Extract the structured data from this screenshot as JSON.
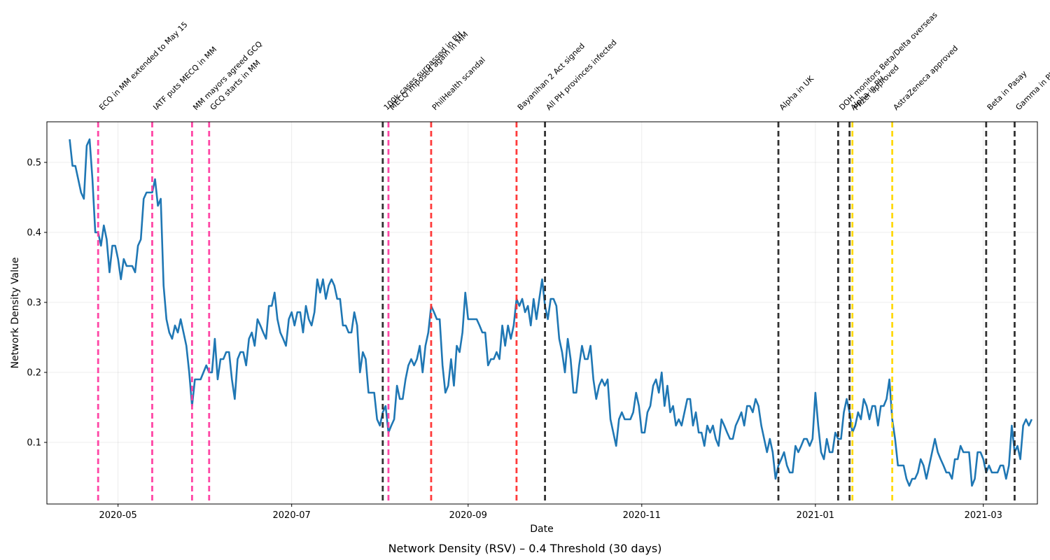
{
  "chart_data": {
    "type": "line",
    "title": "Network Density (RSV) – 0.4 Threshold (30 days)",
    "xlabel": "Date",
    "ylabel": "Network Density Value",
    "grid": true,
    "xlim": [
      "2020-04-06",
      "2021-03-20"
    ],
    "ylim": [
      0.012,
      0.558
    ],
    "x_ticks": [
      "2020-05-01",
      "2020-07-01",
      "2020-09-01",
      "2020-11-01",
      "2021-01-01",
      "2021-03-01"
    ],
    "x_tick_labels": [
      "2020-05",
      "2020-07",
      "2020-09",
      "2020-11",
      "2021-01",
      "2021-03"
    ],
    "y_ticks": [
      0.1,
      0.2,
      0.3,
      0.4,
      0.5
    ],
    "y_tick_labels": [
      "0.1",
      "0.2",
      "0.3",
      "0.4",
      "0.5"
    ],
    "series": [
      {
        "color": "#1f77b4",
        "start_date": "2020-04-14",
        "interval_days": 1,
        "values": [
          0.533,
          0.495,
          0.495,
          0.476,
          0.457,
          0.448,
          0.524,
          0.533,
          0.476,
          0.4,
          0.4,
          0.381,
          0.41,
          0.39,
          0.343,
          0.381,
          0.381,
          0.362,
          0.333,
          0.362,
          0.352,
          0.352,
          0.352,
          0.343,
          0.381,
          0.39,
          0.448,
          0.457,
          0.457,
          0.457,
          0.476,
          0.438,
          0.448,
          0.324,
          0.276,
          0.257,
          0.248,
          0.267,
          0.257,
          0.276,
          0.257,
          0.238,
          0.2,
          0.152,
          0.19,
          0.19,
          0.19,
          0.2,
          0.21,
          0.2,
          0.2,
          0.248,
          0.19,
          0.219,
          0.219,
          0.229,
          0.229,
          0.19,
          0.162,
          0.219,
          0.229,
          0.229,
          0.21,
          0.248,
          0.257,
          0.238,
          0.276,
          0.267,
          0.257,
          0.248,
          0.295,
          0.295,
          0.314,
          0.276,
          0.257,
          0.248,
          0.238,
          0.276,
          0.286,
          0.267,
          0.286,
          0.286,
          0.257,
          0.295,
          0.276,
          0.267,
          0.286,
          0.333,
          0.314,
          0.333,
          0.305,
          0.324,
          0.333,
          0.324,
          0.305,
          0.305,
          0.267,
          0.267,
          0.257,
          0.257,
          0.286,
          0.267,
          0.2,
          0.229,
          0.219,
          0.171,
          0.171,
          0.171,
          0.133,
          0.124,
          0.143,
          0.152,
          0.114,
          0.124,
          0.133,
          0.181,
          0.162,
          0.162,
          0.19,
          0.21,
          0.219,
          0.21,
          0.219,
          0.238,
          0.2,
          0.238,
          0.257,
          0.295,
          0.286,
          0.276,
          0.276,
          0.21,
          0.171,
          0.181,
          0.219,
          0.181,
          0.238,
          0.229,
          0.257,
          0.314,
          0.276,
          0.276,
          0.276,
          0.276,
          0.267,
          0.257,
          0.257,
          0.21,
          0.219,
          0.219,
          0.229,
          0.219,
          0.267,
          0.238,
          0.267,
          0.248,
          0.267,
          0.305,
          0.295,
          0.305,
          0.286,
          0.295,
          0.267,
          0.305,
          0.276,
          0.305,
          0.333,
          0.295,
          0.276,
          0.305,
          0.305,
          0.295,
          0.248,
          0.229,
          0.2,
          0.248,
          0.219,
          0.171,
          0.171,
          0.21,
          0.238,
          0.219,
          0.219,
          0.238,
          0.19,
          0.162,
          0.181,
          0.19,
          0.181,
          0.19,
          0.133,
          0.114,
          0.095,
          0.133,
          0.143,
          0.133,
          0.133,
          0.133,
          0.143,
          0.171,
          0.152,
          0.114,
          0.114,
          0.143,
          0.152,
          0.181,
          0.19,
          0.171,
          0.2,
          0.152,
          0.181,
          0.143,
          0.152,
          0.124,
          0.133,
          0.124,
          0.143,
          0.162,
          0.162,
          0.124,
          0.143,
          0.114,
          0.114,
          0.095,
          0.124,
          0.114,
          0.124,
          0.105,
          0.095,
          0.133,
          0.124,
          0.114,
          0.105,
          0.105,
          0.124,
          0.133,
          0.143,
          0.124,
          0.152,
          0.152,
          0.143,
          0.162,
          0.152,
          0.124,
          0.105,
          0.086,
          0.105,
          0.086,
          0.048,
          0.067,
          0.076,
          0.086,
          0.067,
          0.057,
          0.057,
          0.095,
          0.086,
          0.095,
          0.105,
          0.105,
          0.095,
          0.105,
          0.171,
          0.124,
          0.086,
          0.076,
          0.105,
          0.086,
          0.086,
          0.114,
          0.105,
          0.105,
          0.143,
          0.162,
          0.143,
          0.114,
          0.124,
          0.143,
          0.133,
          0.162,
          0.152,
          0.133,
          0.152,
          0.152,
          0.124,
          0.152,
          0.152,
          0.162,
          0.19,
          0.133,
          0.105,
          0.067,
          0.067,
          0.067,
          0.048,
          0.038,
          0.048,
          0.048,
          0.057,
          0.076,
          0.067,
          0.048,
          0.067,
          0.086,
          0.105,
          0.086,
          0.076,
          0.067,
          0.057,
          0.057,
          0.048,
          0.076,
          0.076,
          0.095,
          0.086,
          0.086,
          0.086,
          0.038,
          0.048,
          0.086,
          0.086,
          0.076,
          0.057,
          0.067,
          0.057,
          0.057,
          0.057,
          0.067,
          0.067,
          0.048,
          0.067,
          0.124,
          0.086,
          0.095,
          0.076,
          0.124,
          0.133,
          0.124,
          0.133
        ]
      }
    ],
    "events": [
      {
        "date": "2020-04-24",
        "label": "ECQ in MM extended to May 15",
        "color": "#ff3ca0"
      },
      {
        "date": "2020-05-13",
        "label": "IATF puts MECQ in MM",
        "color": "#ff3ca0"
      },
      {
        "date": "2020-05-27",
        "label": "MM mayors agreed GCQ",
        "color": "#ff3ca0"
      },
      {
        "date": "2020-06-02",
        "label": "GCQ starts in MM",
        "color": "#ff3ca0"
      },
      {
        "date": "2020-08-02",
        "label": "100k cases surpassed in PH",
        "color": "#262626"
      },
      {
        "date": "2020-08-04",
        "label": "MECQ imposed again in MM",
        "color": "#ff3ca0"
      },
      {
        "date": "2020-08-19",
        "label": "PhilHealth scandal",
        "color": "#ff3030"
      },
      {
        "date": "2020-09-18",
        "label": "Bayanihan 2 Act signed",
        "color": "#ff3030"
      },
      {
        "date": "2020-09-28",
        "label": "All PH provinces infected",
        "color": "#262626"
      },
      {
        "date": "2020-12-19",
        "label": "Alpha in UK",
        "color": "#262626"
      },
      {
        "date": "2021-01-09",
        "label": "DOH monitors Beta/Delta overseas",
        "color": "#262626"
      },
      {
        "date": "2021-01-13",
        "label": "Alpha in PH",
        "color": "#262626"
      },
      {
        "date": "2021-01-14",
        "label": "Pfizer approved",
        "color": "#ffd700"
      },
      {
        "date": "2021-01-28",
        "label": "AstraZeneca approved",
        "color": "#ffd700"
      },
      {
        "date": "2021-03-02",
        "label": "Beta in Pasay",
        "color": "#262626"
      },
      {
        "date": "2021-03-12",
        "label": "Gamma in PH",
        "color": "#262626"
      }
    ]
  }
}
